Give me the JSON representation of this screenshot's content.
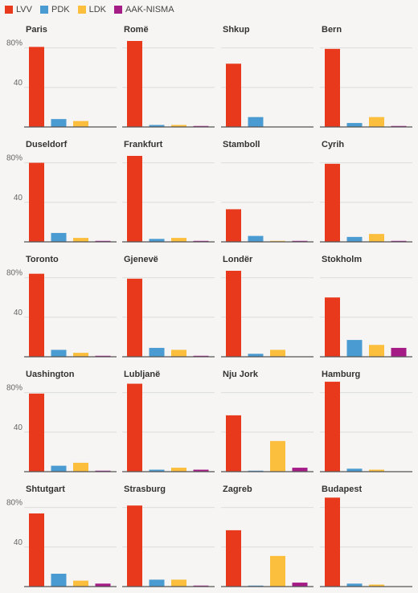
{
  "legend": [
    {
      "label": "LVV",
      "color": "#e8391d"
    },
    {
      "label": "PDK",
      "color": "#4a9bd1"
    },
    {
      "label": "LDK",
      "color": "#fbbe3d"
    },
    {
      "label": "AAK-NISMA",
      "color": "#a51c87"
    }
  ],
  "chart_data": {
    "type": "bar",
    "layout": "small-multiples",
    "grid": true,
    "legend_position": "top-left",
    "ylim": [
      0,
      100
    ],
    "yticks": [
      {
        "value": 80,
        "label": "80%"
      },
      {
        "value": 40,
        "label": "40"
      }
    ],
    "series_names": [
      "LVV",
      "PDK",
      "LDK",
      "AAK-NISMA"
    ],
    "panels": [
      {
        "title": "Paris",
        "values": [
          81,
          8,
          6,
          0
        ]
      },
      {
        "title": "Romë",
        "values": [
          87,
          2,
          2,
          1
        ]
      },
      {
        "title": "Shkup",
        "values": [
          64,
          10,
          0,
          0
        ]
      },
      {
        "title": "Bern",
        "values": [
          79,
          4,
          10,
          1
        ]
      },
      {
        "title": "Duseldorf",
        "values": [
          80,
          9,
          4,
          1
        ]
      },
      {
        "title": "Frankfurt",
        "values": [
          87,
          3,
          4,
          1
        ]
      },
      {
        "title": "Stamboll",
        "values": [
          33,
          6,
          1,
          1
        ]
      },
      {
        "title": "Cyrih",
        "values": [
          79,
          5,
          8,
          1
        ]
      },
      {
        "title": "Toronto",
        "values": [
          84,
          7,
          4,
          1
        ]
      },
      {
        "title": "Gjenevë",
        "values": [
          79,
          9,
          7,
          1
        ]
      },
      {
        "title": "Londër",
        "values": [
          87,
          3,
          7,
          0
        ]
      },
      {
        "title": "Stokholm",
        "values": [
          60,
          17,
          12,
          9
        ]
      },
      {
        "title": "Uashington",
        "values": [
          79,
          6,
          9,
          1
        ]
      },
      {
        "title": "Lubljanë",
        "values": [
          89,
          2,
          4,
          2
        ]
      },
      {
        "title": "Nju Jork",
        "values": [
          57,
          1,
          31,
          4
        ]
      },
      {
        "title": "Hamburg",
        "values": [
          91,
          3,
          2,
          0
        ]
      },
      {
        "title": "Shtutgart",
        "values": [
          74,
          13,
          6,
          3
        ]
      },
      {
        "title": "Strasburg",
        "values": [
          82,
          7,
          7,
          1
        ]
      },
      {
        "title": "Zagreb",
        "values": [
          57,
          1,
          31,
          4
        ]
      },
      {
        "title": "Budapest",
        "values": [
          90,
          3,
          2,
          0
        ]
      }
    ]
  }
}
